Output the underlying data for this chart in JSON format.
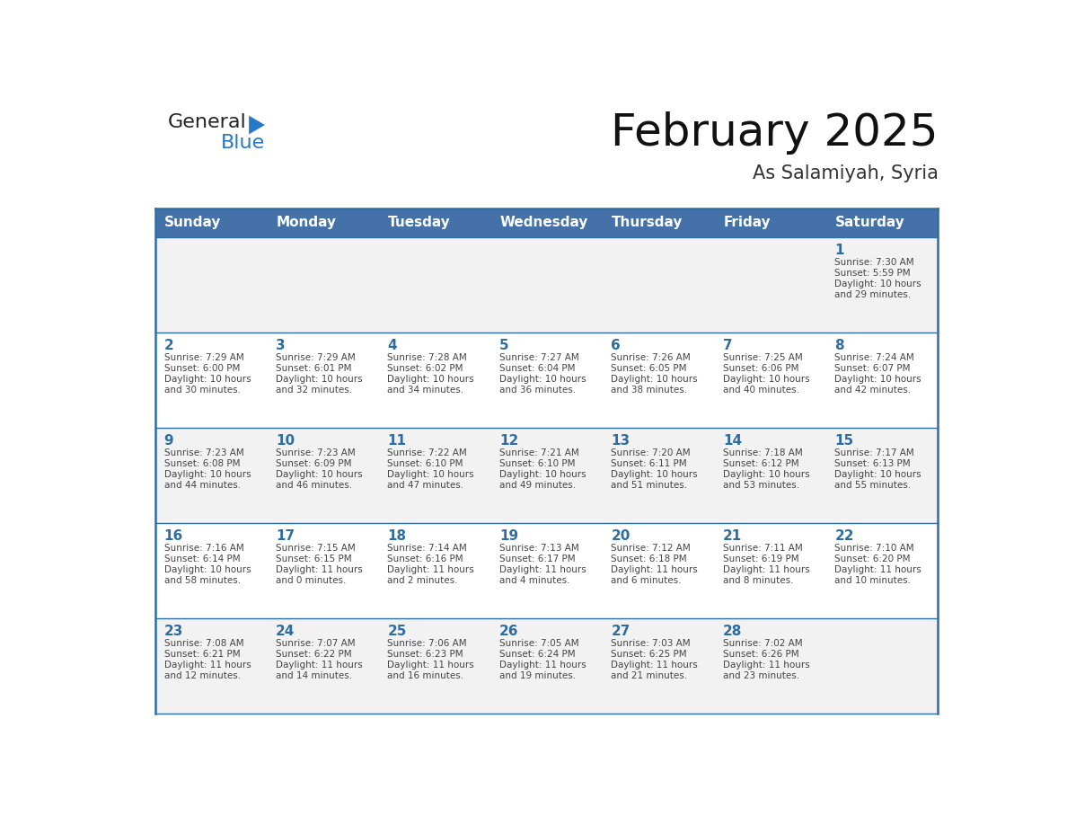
{
  "title": "February 2025",
  "subtitle": "As Salamiyah, Syria",
  "header_bg": "#4472a8",
  "header_text_color": "#ffffff",
  "weekdays": [
    "Sunday",
    "Monday",
    "Tuesday",
    "Wednesday",
    "Thursday",
    "Friday",
    "Saturday"
  ],
  "row_bg_even": "#f2f2f2",
  "row_bg_odd": "#ffffff",
  "cell_text_color": "#444444",
  "day_num_color": "#2e6da4",
  "border_color": "#2e6da4",
  "days": [
    {
      "day": 1,
      "col": 6,
      "row": 0,
      "sunrise": "7:30 AM",
      "sunset": "5:59 PM",
      "daylight_h": "10 hours",
      "daylight_m": "and 29 minutes."
    },
    {
      "day": 2,
      "col": 0,
      "row": 1,
      "sunrise": "7:29 AM",
      "sunset": "6:00 PM",
      "daylight_h": "10 hours",
      "daylight_m": "and 30 minutes."
    },
    {
      "day": 3,
      "col": 1,
      "row": 1,
      "sunrise": "7:29 AM",
      "sunset": "6:01 PM",
      "daylight_h": "10 hours",
      "daylight_m": "and 32 minutes."
    },
    {
      "day": 4,
      "col": 2,
      "row": 1,
      "sunrise": "7:28 AM",
      "sunset": "6:02 PM",
      "daylight_h": "10 hours",
      "daylight_m": "and 34 minutes."
    },
    {
      "day": 5,
      "col": 3,
      "row": 1,
      "sunrise": "7:27 AM",
      "sunset": "6:04 PM",
      "daylight_h": "10 hours",
      "daylight_m": "and 36 minutes."
    },
    {
      "day": 6,
      "col": 4,
      "row": 1,
      "sunrise": "7:26 AM",
      "sunset": "6:05 PM",
      "daylight_h": "10 hours",
      "daylight_m": "and 38 minutes."
    },
    {
      "day": 7,
      "col": 5,
      "row": 1,
      "sunrise": "7:25 AM",
      "sunset": "6:06 PM",
      "daylight_h": "10 hours",
      "daylight_m": "and 40 minutes."
    },
    {
      "day": 8,
      "col": 6,
      "row": 1,
      "sunrise": "7:24 AM",
      "sunset": "6:07 PM",
      "daylight_h": "10 hours",
      "daylight_m": "and 42 minutes."
    },
    {
      "day": 9,
      "col": 0,
      "row": 2,
      "sunrise": "7:23 AM",
      "sunset": "6:08 PM",
      "daylight_h": "10 hours",
      "daylight_m": "and 44 minutes."
    },
    {
      "day": 10,
      "col": 1,
      "row": 2,
      "sunrise": "7:23 AM",
      "sunset": "6:09 PM",
      "daylight_h": "10 hours",
      "daylight_m": "and 46 minutes."
    },
    {
      "day": 11,
      "col": 2,
      "row": 2,
      "sunrise": "7:22 AM",
      "sunset": "6:10 PM",
      "daylight_h": "10 hours",
      "daylight_m": "and 47 minutes."
    },
    {
      "day": 12,
      "col": 3,
      "row": 2,
      "sunrise": "7:21 AM",
      "sunset": "6:10 PM",
      "daylight_h": "10 hours",
      "daylight_m": "and 49 minutes."
    },
    {
      "day": 13,
      "col": 4,
      "row": 2,
      "sunrise": "7:20 AM",
      "sunset": "6:11 PM",
      "daylight_h": "10 hours",
      "daylight_m": "and 51 minutes."
    },
    {
      "day": 14,
      "col": 5,
      "row": 2,
      "sunrise": "7:18 AM",
      "sunset": "6:12 PM",
      "daylight_h": "10 hours",
      "daylight_m": "and 53 minutes."
    },
    {
      "day": 15,
      "col": 6,
      "row": 2,
      "sunrise": "7:17 AM",
      "sunset": "6:13 PM",
      "daylight_h": "10 hours",
      "daylight_m": "and 55 minutes."
    },
    {
      "day": 16,
      "col": 0,
      "row": 3,
      "sunrise": "7:16 AM",
      "sunset": "6:14 PM",
      "daylight_h": "10 hours",
      "daylight_m": "and 58 minutes."
    },
    {
      "day": 17,
      "col": 1,
      "row": 3,
      "sunrise": "7:15 AM",
      "sunset": "6:15 PM",
      "daylight_h": "11 hours",
      "daylight_m": "and 0 minutes."
    },
    {
      "day": 18,
      "col": 2,
      "row": 3,
      "sunrise": "7:14 AM",
      "sunset": "6:16 PM",
      "daylight_h": "11 hours",
      "daylight_m": "and 2 minutes."
    },
    {
      "day": 19,
      "col": 3,
      "row": 3,
      "sunrise": "7:13 AM",
      "sunset": "6:17 PM",
      "daylight_h": "11 hours",
      "daylight_m": "and 4 minutes."
    },
    {
      "day": 20,
      "col": 4,
      "row": 3,
      "sunrise": "7:12 AM",
      "sunset": "6:18 PM",
      "daylight_h": "11 hours",
      "daylight_m": "and 6 minutes."
    },
    {
      "day": 21,
      "col": 5,
      "row": 3,
      "sunrise": "7:11 AM",
      "sunset": "6:19 PM",
      "daylight_h": "11 hours",
      "daylight_m": "and 8 minutes."
    },
    {
      "day": 22,
      "col": 6,
      "row": 3,
      "sunrise": "7:10 AM",
      "sunset": "6:20 PM",
      "daylight_h": "11 hours",
      "daylight_m": "and 10 minutes."
    },
    {
      "day": 23,
      "col": 0,
      "row": 4,
      "sunrise": "7:08 AM",
      "sunset": "6:21 PM",
      "daylight_h": "11 hours",
      "daylight_m": "and 12 minutes."
    },
    {
      "day": 24,
      "col": 1,
      "row": 4,
      "sunrise": "7:07 AM",
      "sunset": "6:22 PM",
      "daylight_h": "11 hours",
      "daylight_m": "and 14 minutes."
    },
    {
      "day": 25,
      "col": 2,
      "row": 4,
      "sunrise": "7:06 AM",
      "sunset": "6:23 PM",
      "daylight_h": "11 hours",
      "daylight_m": "and 16 minutes."
    },
    {
      "day": 26,
      "col": 3,
      "row": 4,
      "sunrise": "7:05 AM",
      "sunset": "6:24 PM",
      "daylight_h": "11 hours",
      "daylight_m": "and 19 minutes."
    },
    {
      "day": 27,
      "col": 4,
      "row": 4,
      "sunrise": "7:03 AM",
      "sunset": "6:25 PM",
      "daylight_h": "11 hours",
      "daylight_m": "and 21 minutes."
    },
    {
      "day": 28,
      "col": 5,
      "row": 4,
      "sunrise": "7:02 AM",
      "sunset": "6:26 PM",
      "daylight_h": "11 hours",
      "daylight_m": "and 23 minutes."
    }
  ],
  "num_rows": 5,
  "num_cols": 7,
  "logo_general_color": "#222222",
  "logo_blue_color": "#2878c8",
  "logo_triangle_color": "#2878c8",
  "title_fontsize": 36,
  "subtitle_fontsize": 15,
  "header_fontsize": 11,
  "day_num_fontsize": 11,
  "cell_fontsize": 7.5
}
